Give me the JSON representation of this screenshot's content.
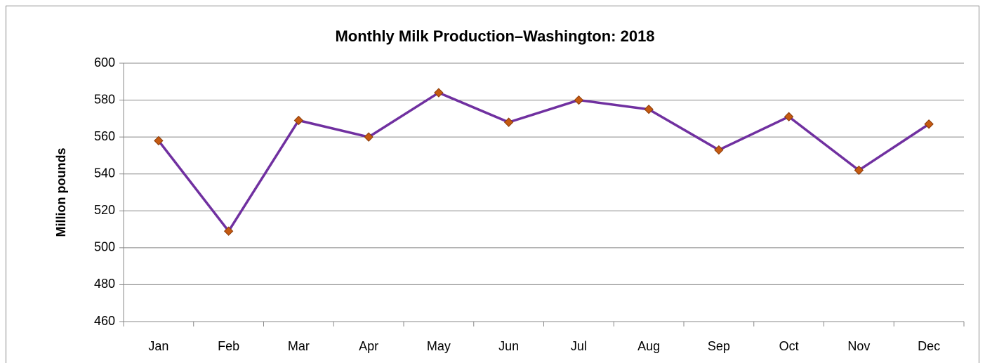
{
  "chart_data": {
    "type": "line",
    "title": "Monthly Milk Production–Washington: 2018",
    "y_label": "Million pounds",
    "categories": [
      "Jan",
      "Feb",
      "Mar",
      "Apr",
      "May",
      "Jun",
      "Jul",
      "Aug",
      "Sep",
      "Oct",
      "Nov",
      "Dec"
    ],
    "values": [
      558,
      509,
      569,
      560,
      584,
      568,
      580,
      575,
      553,
      571,
      542,
      567
    ],
    "color": "#7030a0",
    "marker_color": "#c55a11",
    "ylim": [
      460,
      600
    ],
    "yticks": [
      460,
      480,
      500,
      520,
      540,
      560,
      580,
      600
    ],
    "grid": true
  }
}
